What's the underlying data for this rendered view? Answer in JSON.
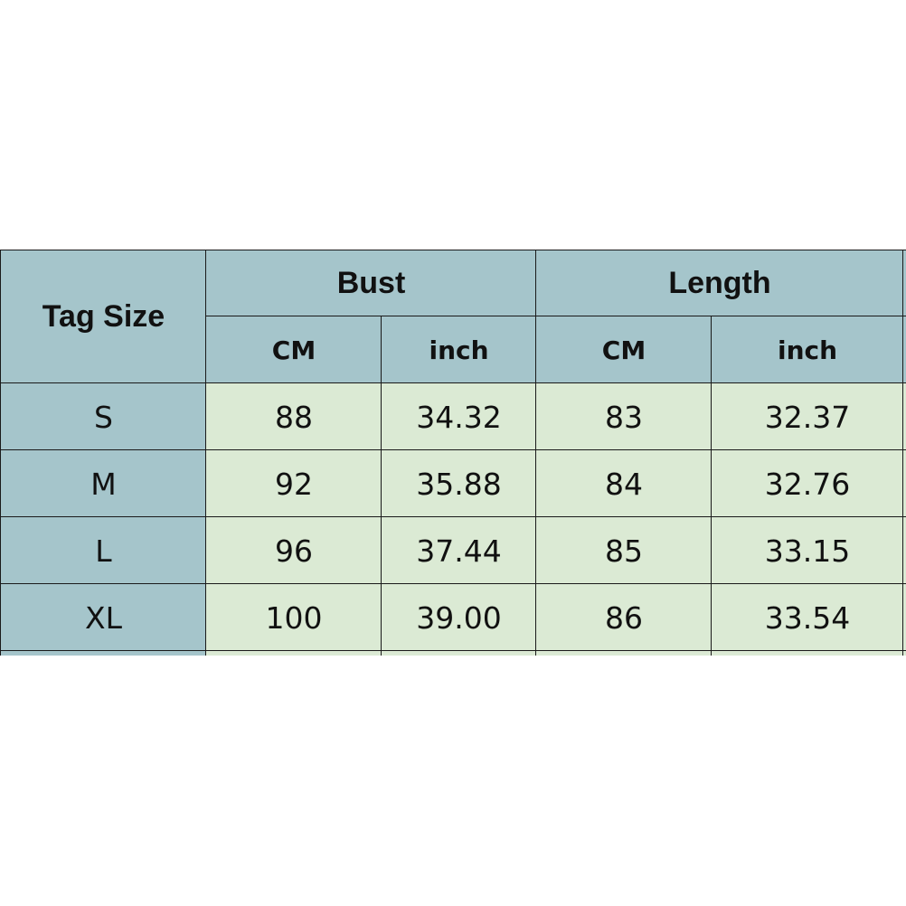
{
  "table": {
    "header": {
      "tag_size": "Tag Size",
      "bust": "Bust",
      "length": "Length",
      "cm": "CM",
      "inch": "inch"
    },
    "rows": [
      {
        "size": "S",
        "bust_cm": "88",
        "bust_inch": "34.32",
        "length_cm": "83",
        "length_inch": "32.37"
      },
      {
        "size": "M",
        "bust_cm": "92",
        "bust_inch": "35.88",
        "length_cm": "84",
        "length_inch": "32.76"
      },
      {
        "size": "L",
        "bust_cm": "96",
        "bust_inch": "37.44",
        "length_cm": "85",
        "length_inch": "33.15"
      },
      {
        "size": "XL",
        "bust_cm": "100",
        "bust_inch": "39.00",
        "length_cm": "86",
        "length_inch": "33.54"
      }
    ]
  },
  "colors": {
    "header": "#a5c5cb",
    "body": "#dbead4"
  }
}
